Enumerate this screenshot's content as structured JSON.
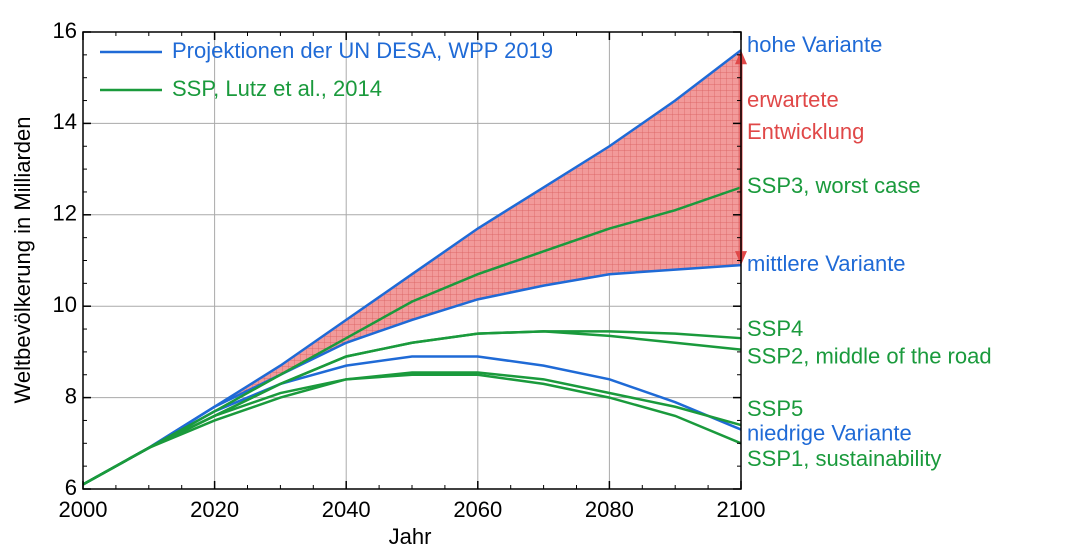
{
  "chart_data": {
    "type": "line",
    "xlabel": "Jahr",
    "ylabel": "Weltbevölkerung in Milliarden",
    "x": [
      2000,
      2010,
      2020,
      2030,
      2040,
      2050,
      2060,
      2070,
      2080,
      2090,
      2100
    ],
    "series": [
      {
        "name": "hohe Variante",
        "color": "#1f6ad6",
        "values": [
          6.1,
          6.9,
          7.8,
          8.7,
          9.7,
          10.7,
          11.7,
          12.6,
          13.5,
          14.5,
          15.6
        ]
      },
      {
        "name": "mittlere Variante",
        "color": "#1f6ad6",
        "values": [
          6.1,
          6.9,
          7.8,
          8.5,
          9.2,
          9.7,
          10.15,
          10.45,
          10.7,
          10.8,
          10.9
        ]
      },
      {
        "name": "niedrige Variante",
        "color": "#1f6ad6",
        "values": [
          6.1,
          6.9,
          7.7,
          8.3,
          8.7,
          8.9,
          8.9,
          8.7,
          8.4,
          7.9,
          7.3
        ]
      },
      {
        "name": "SSP3, worst case",
        "color": "#1a9a3c",
        "values": [
          6.1,
          6.9,
          7.7,
          8.5,
          9.3,
          10.1,
          10.7,
          11.2,
          11.7,
          12.1,
          12.6
        ]
      },
      {
        "name": "SSP4",
        "color": "#1a9a3c",
        "values": [
          6.1,
          6.9,
          7.6,
          8.3,
          8.9,
          9.2,
          9.4,
          9.45,
          9.45,
          9.4,
          9.3
        ]
      },
      {
        "name": "SSP2, middle of the road",
        "color": "#1a9a3c",
        "values": [
          6.1,
          6.9,
          7.6,
          8.3,
          8.9,
          9.2,
          9.4,
          9.45,
          9.35,
          9.2,
          9.05
        ]
      },
      {
        "name": "SSP5",
        "color": "#1a9a3c",
        "values": [
          6.1,
          6.9,
          7.6,
          8.1,
          8.4,
          8.55,
          8.55,
          8.4,
          8.1,
          7.8,
          7.4
        ]
      },
      {
        "name": "SSP1, sustainability",
        "color": "#1a9a3c",
        "values": [
          6.1,
          6.9,
          7.5,
          8.0,
          8.4,
          8.5,
          8.5,
          8.3,
          8.0,
          7.6,
          7.0
        ]
      }
    ],
    "legend": [
      {
        "name": "Projektionen der UN DESA, WPP 2019",
        "color": "#1f6ad6"
      },
      {
        "name": "SSP, Lutz et al., 2014",
        "color": "#1a9a3c"
      }
    ],
    "legend_position": "upper left",
    "annotation": {
      "lines": [
        "erwartete",
        "Entwicklung"
      ],
      "color": "#e04848"
    },
    "xlim": [
      2000,
      2100
    ],
    "xticks": [
      2000,
      2020,
      2040,
      2060,
      2080,
      2100
    ],
    "xminorticks": [
      2005,
      2010,
      2015,
      2025,
      2030,
      2035,
      2045,
      2050,
      2055,
      2065,
      2070,
      2075,
      2085,
      2090,
      2095
    ],
    "ylim": [
      6,
      16
    ],
    "yticks": [
      6,
      8,
      10,
      12,
      14,
      16
    ],
    "yminorticks": [
      6.5,
      7,
      7.5,
      8.5,
      9,
      9.5,
      10.5,
      11,
      11.5,
      12.5,
      13,
      13.5,
      14.5,
      15,
      15.5
    ],
    "grid": true
  }
}
